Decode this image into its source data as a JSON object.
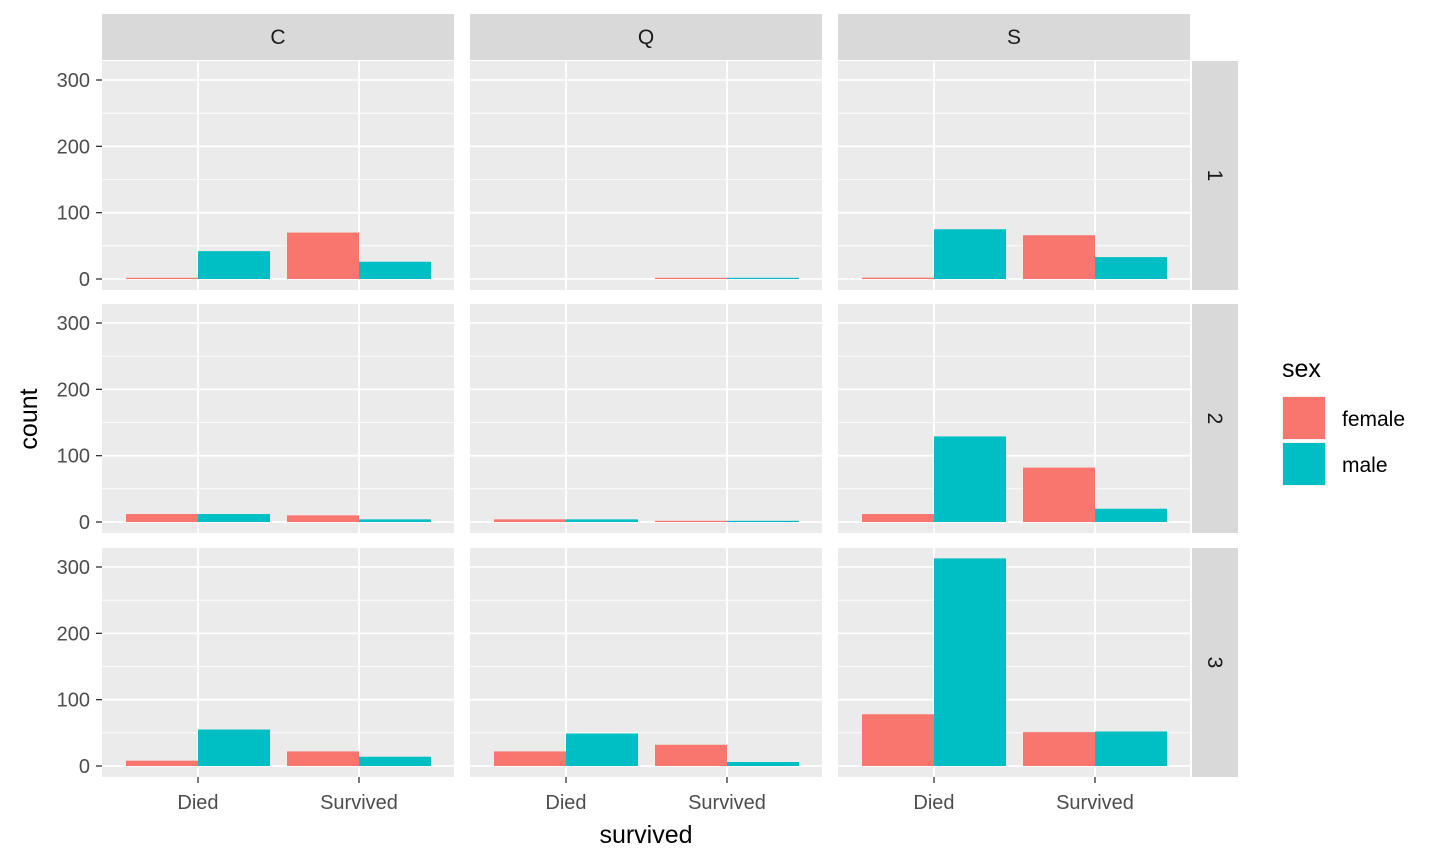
{
  "chart_data": {
    "type": "bar",
    "layout": "facet_grid",
    "xlabel": "survived",
    "ylabel": "count",
    "ylim": [
      0,
      340
    ],
    "yticks": [
      0,
      100,
      200,
      300
    ],
    "grid": true,
    "legend_position": "right",
    "column_facets": [
      "C",
      "Q",
      "S"
    ],
    "row_facets": [
      "1",
      "2",
      "3"
    ],
    "categories": [
      "Died",
      "Survived"
    ],
    "legend": {
      "title": "sex",
      "entries": [
        {
          "name": "female",
          "color": "#F8766D"
        },
        {
          "name": "male",
          "color": "#00BFC4"
        }
      ]
    },
    "panels": [
      {
        "row": "1",
        "col": "C",
        "series": [
          {
            "name": "female",
            "values": [
              1,
              70
            ]
          },
          {
            "name": "male",
            "values": [
              42,
              26
            ]
          }
        ]
      },
      {
        "row": "1",
        "col": "Q",
        "series": [
          {
            "name": "female",
            "values": [
              0,
              1
            ]
          },
          {
            "name": "male",
            "values": [
              0,
              1
            ]
          }
        ]
      },
      {
        "row": "1",
        "col": "S",
        "series": [
          {
            "name": "female",
            "values": [
              2,
              66
            ]
          },
          {
            "name": "male",
            "values": [
              75,
              33
            ]
          }
        ]
      },
      {
        "row": "2",
        "col": "C",
        "series": [
          {
            "name": "female",
            "values": [
              12,
              10
            ]
          },
          {
            "name": "male",
            "values": [
              12,
              4
            ]
          }
        ]
      },
      {
        "row": "2",
        "col": "Q",
        "series": [
          {
            "name": "female",
            "values": [
              4,
              1
            ]
          },
          {
            "name": "male",
            "values": [
              4,
              1
            ]
          }
        ]
      },
      {
        "row": "2",
        "col": "S",
        "series": [
          {
            "name": "female",
            "values": [
              12,
              82
            ]
          },
          {
            "name": "male",
            "values": [
              129,
              20
            ]
          }
        ]
      },
      {
        "row": "3",
        "col": "C",
        "series": [
          {
            "name": "female",
            "values": [
              8,
              22
            ]
          },
          {
            "name": "male",
            "values": [
              55,
              14
            ]
          }
        ]
      },
      {
        "row": "3",
        "col": "Q",
        "series": [
          {
            "name": "female",
            "values": [
              22,
              32
            ]
          },
          {
            "name": "male",
            "values": [
              49,
              6
            ]
          }
        ]
      },
      {
        "row": "3",
        "col": "S",
        "series": [
          {
            "name": "female",
            "values": [
              78,
              51
            ]
          },
          {
            "name": "male",
            "values": [
              313,
              52
            ]
          }
        ]
      }
    ]
  }
}
